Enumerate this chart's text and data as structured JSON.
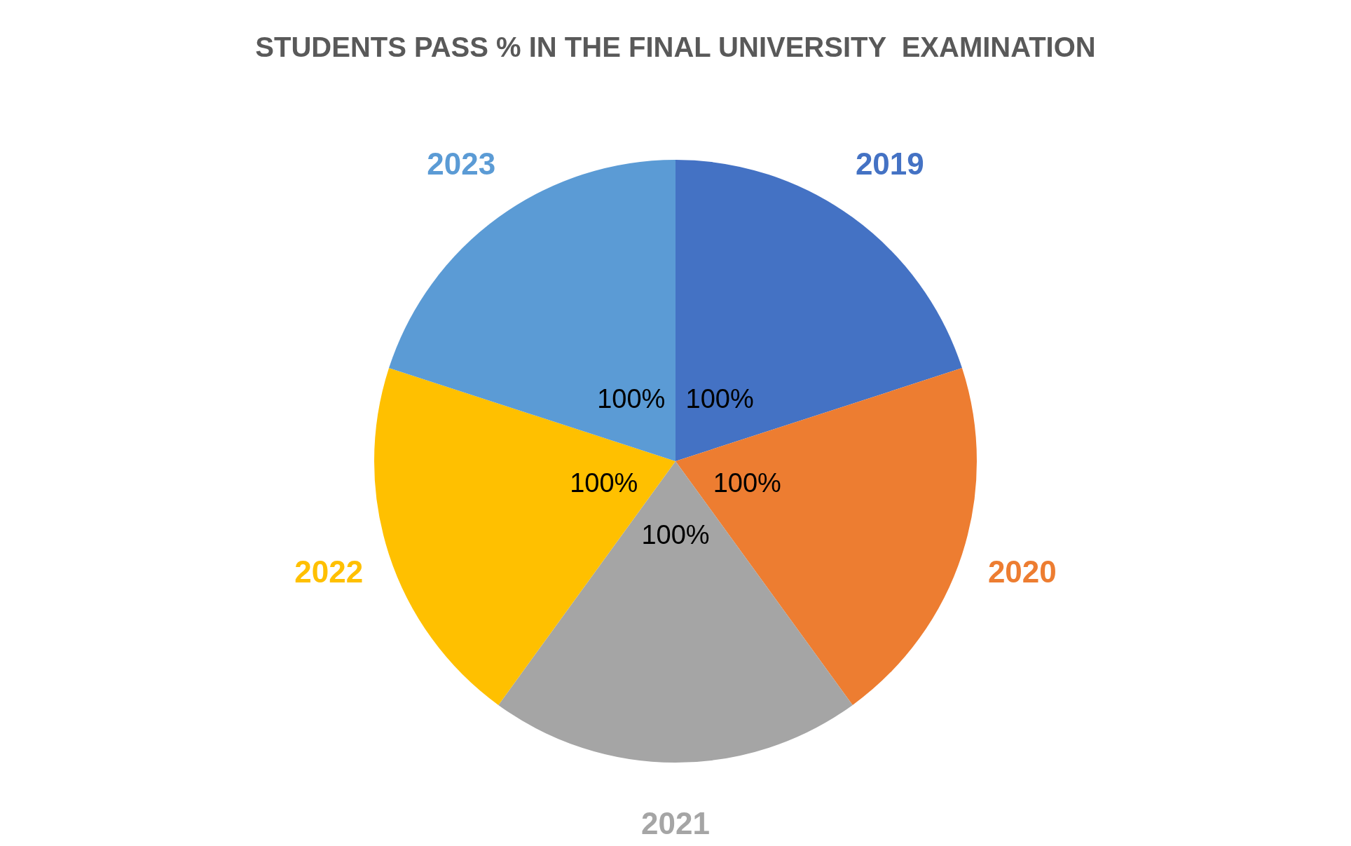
{
  "chart_data": {
    "type": "pie",
    "title": "STUDENTS PASS % IN THE FINAL UNIVERSITY  EXAMINATION",
    "categories": [
      "2019",
      "2020",
      "2021",
      "2022",
      "2023"
    ],
    "values": [
      100,
      100,
      100,
      100,
      100
    ],
    "value_labels": [
      "100%",
      "100%",
      "100%",
      "100%",
      "100%"
    ],
    "colors": [
      "#4472c4",
      "#ed7d31",
      "#a5a5a5",
      "#ffc000",
      "#5b9bd5"
    ]
  }
}
